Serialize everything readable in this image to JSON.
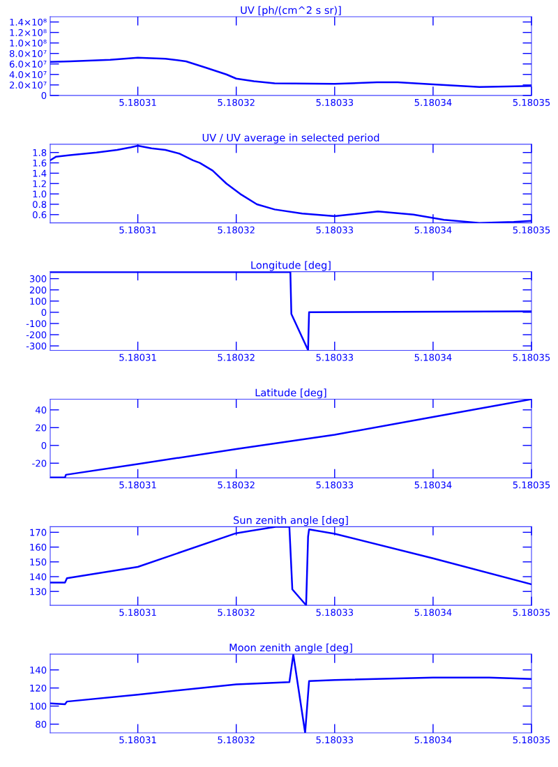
{
  "chart_data": [
    {
      "type": "line",
      "title": "UV [ph/(cm^2 s sr)]",
      "xlim": [
        5.1803011,
        5.18035
      ],
      "xticks": [
        5.18031,
        5.18032,
        5.18033,
        5.18034,
        5.18035
      ],
      "ylim": [
        0,
        150000000
      ],
      "yticks": [
        0,
        {
          "value": 20000000,
          "label": "2.0×10⁷"
        },
        {
          "value": 40000000,
          "label": "4.0×10⁷"
        },
        {
          "value": 60000000,
          "label": "6.0×10⁷"
        },
        {
          "value": 80000000,
          "label": "8.0×10⁷"
        },
        {
          "value": 100000000,
          "label": "1.0×10⁸"
        },
        {
          "value": 120000000,
          "label": "1.2×10⁸"
        },
        {
          "value": 140000000,
          "label": "1.4×10⁸"
        }
      ],
      "series": [
        {
          "color": "#0000ff",
          "x": [
            5.1803011,
            5.1803031,
            5.1803072,
            5.18031,
            5.1803128,
            5.1803149,
            5.1803169,
            5.180319,
            5.18032,
            5.1803218,
            5.1803239,
            5.18033,
            5.1803343,
            5.1803364,
            5.18034,
            5.1803447,
            5.1803475,
            5.18035
          ],
          "values": [
            64000000,
            65000000,
            68000000,
            72000000,
            70000000,
            65000000,
            53000000,
            40000000,
            32000000,
            27000000,
            23000000,
            22000000,
            25000000,
            25000000,
            21000000,
            16000000,
            17000000,
            18000000
          ]
        }
      ]
    },
    {
      "type": "line",
      "title": "UV / UV average in selected period",
      "xlim": [
        5.1803011,
        5.18035
      ],
      "xticks": [
        5.18031,
        5.18032,
        5.18033,
        5.18034,
        5.18035
      ],
      "ylim": [
        0.44,
        1.96
      ],
      "yticks": [
        {
          "value": 0.6,
          "label": "0.6"
        },
        {
          "value": 0.8,
          "label": "0.8"
        },
        {
          "value": 1.0,
          "label": "1.0"
        },
        {
          "value": 1.2,
          "label": "1.2"
        },
        {
          "value": 1.4,
          "label": "1.4"
        },
        {
          "value": 1.6,
          "label": "1.6"
        },
        {
          "value": 1.8,
          "label": "1.8"
        }
      ],
      "series": [
        {
          "color": "#0000ff",
          "x": [
            5.1803011,
            5.1803017,
            5.1803031,
            5.1803058,
            5.1803079,
            5.1803093,
            5.18031,
            5.1803114,
            5.1803128,
            5.1803142,
            5.1803156,
            5.1803163,
            5.1803176,
            5.180319,
            5.1803204,
            5.1803221,
            5.1803239,
            5.1803267,
            5.18033,
            5.1803344,
            5.180338,
            5.1803411,
            5.1803447,
            5.1803482,
            5.18035
          ],
          "values": [
            1.65,
            1.72,
            1.75,
            1.8,
            1.85,
            1.9,
            1.93,
            1.88,
            1.85,
            1.78,
            1.65,
            1.6,
            1.45,
            1.2,
            1.0,
            0.8,
            0.7,
            0.62,
            0.57,
            0.66,
            0.6,
            0.5,
            0.44,
            0.46,
            0.48
          ]
        }
      ]
    },
    {
      "type": "line",
      "title": "Longitude [deg]",
      "xlim": [
        5.1803011,
        5.18035
      ],
      "xticks": [
        5.18031,
        5.18032,
        5.18033,
        5.18034,
        5.18035
      ],
      "ylim": [
        -340,
        362
      ],
      "yticks": [
        -300,
        -200,
        -100,
        0,
        100,
        200,
        300
      ],
      "series": [
        {
          "color": "#0000ff",
          "x": [
            5.1803011,
            5.1803255,
            5.18032555,
            5.1803256,
            5.1803273,
            5.18032735,
            5.1803274,
            5.18035
          ],
          "values": [
            359,
            359,
            170,
            -15,
            -338,
            -165,
            0,
            8
          ]
        }
      ]
    },
    {
      "type": "line",
      "title": "Latitude [deg]",
      "xlim": [
        5.1803011,
        5.18035
      ],
      "xticks": [
        5.18031,
        5.18032,
        5.18033,
        5.18034,
        5.18035
      ],
      "ylim": [
        -36.5,
        52
      ],
      "yticks": [
        -20,
        0,
        20,
        40
      ],
      "series": [
        {
          "color": "#0000ff",
          "x": [
            5.1803011,
            5.1803026,
            5.1803027,
            5.18031,
            5.18032,
            5.18033,
            5.18034,
            5.18035
          ],
          "values": [
            -36,
            -36,
            -33,
            -21,
            -4,
            12,
            32,
            52
          ]
        }
      ]
    },
    {
      "type": "line",
      "title": "Sun zenith angle [deg]",
      "xlim": [
        5.1803011,
        5.18035
      ],
      "xticks": [
        5.18031,
        5.18032,
        5.18033,
        5.18034,
        5.18035
      ],
      "ylim": [
        120.6,
        173.8
      ],
      "yticks": [
        130,
        140,
        150,
        160,
        170
      ],
      "series": [
        {
          "color": "#0000ff",
          "x": [
            5.1803011,
            5.1803026,
            5.1803028,
            5.18031,
            5.18032,
            5.180324,
            5.1803254,
            5.1803257,
            5.1803271,
            5.1803273,
            5.1803274,
            5.18033,
            5.18034,
            5.18035
          ],
          "values": [
            136,
            136,
            139,
            146.6,
            169.4,
            173.7,
            173.7,
            131.4,
            120.7,
            167,
            172,
            169,
            152.4,
            134.8
          ]
        }
      ]
    },
    {
      "type": "line",
      "title": "Moon zenith angle [deg]",
      "xlim": [
        5.1803011,
        5.18035
      ],
      "xticks": [
        5.18031,
        5.18032,
        5.18033,
        5.18034,
        5.18035
      ],
      "ylim": [
        70.4,
        157.4
      ],
      "yticks": [
        80,
        100,
        120,
        140
      ],
      "series": [
        {
          "color": "#0000ff",
          "x": [
            5.1803011,
            5.1803026,
            5.1803028,
            5.18031,
            5.18032,
            5.1803254,
            5.1803258,
            5.180327,
            5.1803274,
            5.18033,
            5.18034,
            5.1803457,
            5.18035
          ],
          "values": [
            103,
            102,
            105,
            112.7,
            124,
            126.4,
            157,
            70.4,
            127.6,
            128.8,
            131.5,
            131.5,
            130
          ]
        }
      ]
    }
  ]
}
